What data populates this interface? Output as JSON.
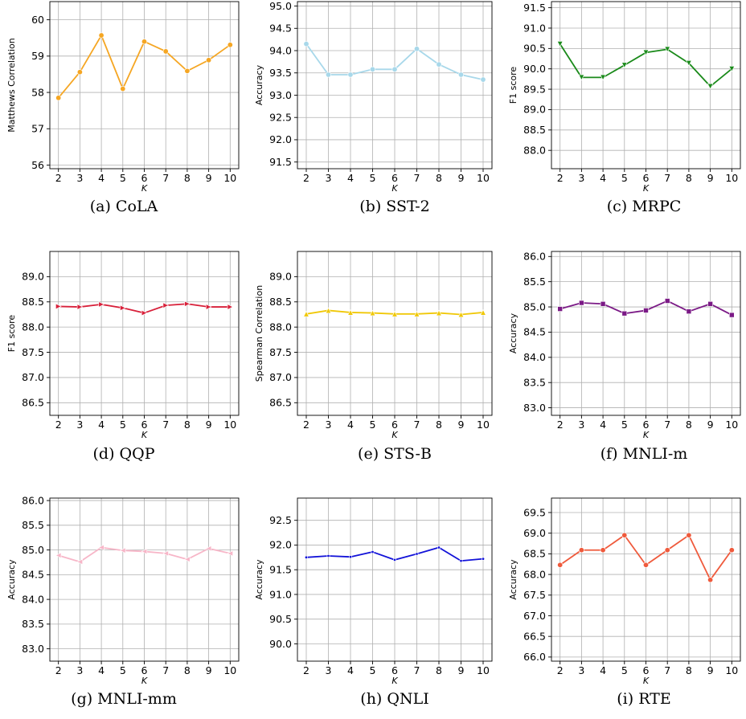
{
  "chart_data": [
    {
      "type": "line",
      "caption": "(a) CoLA",
      "color": "#f5a623",
      "marker": "circle",
      "x": [
        2,
        3,
        4,
        5,
        6,
        7,
        8,
        9,
        10
      ],
      "series": [
        {
          "values": [
            57.85,
            58.56,
            59.57,
            58.1,
            59.4,
            59.13,
            58.59,
            58.89,
            59.31
          ]
        }
      ],
      "xlabel": "K",
      "ylabel": "Matthews Correlation",
      "xlim": [
        1.6,
        10.4
      ],
      "ylim": [
        55.9,
        60.5
      ],
      "yticks": [
        56,
        57,
        58,
        59,
        60
      ],
      "ytick_labels": [
        "56",
        "57",
        "58",
        "59",
        "60"
      ],
      "xticks": [
        2,
        3,
        4,
        5,
        6,
        7,
        8,
        9,
        10
      ],
      "grid": true
    },
    {
      "type": "line",
      "caption": "(b) SST-2",
      "color": "#a8d8ea",
      "marker": "circle",
      "x": [
        2,
        3,
        4,
        5,
        6,
        7,
        8,
        9,
        10
      ],
      "series": [
        {
          "values": [
            94.15,
            93.46,
            93.46,
            93.58,
            93.58,
            94.04,
            93.69,
            93.46,
            93.35
          ]
        }
      ],
      "xlabel": "K",
      "ylabel": "Accuracy",
      "xlim": [
        1.6,
        10.4
      ],
      "ylim": [
        91.35,
        95.1
      ],
      "yticks": [
        91.5,
        92.0,
        92.5,
        93.0,
        93.5,
        94.0,
        94.5,
        95.0
      ],
      "ytick_labels": [
        "91.5",
        "92.0",
        "92.5",
        "93.0",
        "93.5",
        "94.0",
        "94.5",
        "95.0"
      ],
      "xticks": [
        2,
        3,
        4,
        5,
        6,
        7,
        8,
        9,
        10
      ],
      "grid": true
    },
    {
      "type": "line",
      "caption": "(c) MRPC",
      "color": "#1a8a1a",
      "marker": "triangle-down",
      "x": [
        2,
        3,
        4,
        5,
        6,
        7,
        8,
        9,
        10
      ],
      "series": [
        {
          "values": [
            90.61,
            89.79,
            89.79,
            90.09,
            90.4,
            90.48,
            90.14,
            89.57,
            90.0
          ]
        }
      ],
      "xlabel": "K",
      "ylabel": "F1 score",
      "xlim": [
        1.6,
        10.4
      ],
      "ylim": [
        87.55,
        91.65
      ],
      "yticks": [
        88.0,
        88.5,
        89.0,
        89.5,
        90.0,
        90.5,
        91.0,
        91.5
      ],
      "ytick_labels": [
        "88.0",
        "88.5",
        "89.0",
        "89.5",
        "90.0",
        "90.5",
        "91.0",
        "91.5"
      ],
      "xticks": [
        2,
        3,
        4,
        5,
        6,
        7,
        8,
        9,
        10
      ],
      "grid": true
    },
    {
      "type": "line",
      "caption": "(d) QQP",
      "color": "#d8203a",
      "marker": "triangle-right",
      "x": [
        2,
        3,
        4,
        5,
        6,
        7,
        8,
        9,
        10
      ],
      "series": [
        {
          "values": [
            88.41,
            88.4,
            88.45,
            88.38,
            88.28,
            88.43,
            88.46,
            88.4,
            88.4
          ]
        }
      ],
      "xlabel": "K",
      "ylabel": "F1 score",
      "xlim": [
        1.6,
        10.4
      ],
      "ylim": [
        86.25,
        89.5
      ],
      "yticks": [
        86.5,
        87.0,
        87.5,
        88.0,
        88.5,
        89.0
      ],
      "ytick_labels": [
        "86.5",
        "87.0",
        "87.5",
        "88.0",
        "88.5",
        "89.0"
      ],
      "xticks": [
        2,
        3,
        4,
        5,
        6,
        7,
        8,
        9,
        10
      ],
      "grid": true
    },
    {
      "type": "line",
      "caption": "(e) STS-B",
      "color": "#f0c808",
      "marker": "triangle-up",
      "x": [
        2,
        3,
        4,
        5,
        6,
        7,
        8,
        9,
        10
      ],
      "series": [
        {
          "values": [
            88.26,
            88.33,
            88.29,
            88.28,
            88.26,
            88.26,
            88.28,
            88.25,
            88.29
          ]
        }
      ],
      "xlabel": "K",
      "ylabel": "Spearman Correlation",
      "xlim": [
        1.6,
        10.4
      ],
      "ylim": [
        86.25,
        89.5
      ],
      "yticks": [
        86.5,
        87.0,
        87.5,
        88.0,
        88.5,
        89.0
      ],
      "ytick_labels": [
        "86.5",
        "87.0",
        "87.5",
        "88.0",
        "88.5",
        "89.0"
      ],
      "xticks": [
        2,
        3,
        4,
        5,
        6,
        7,
        8,
        9,
        10
      ],
      "grid": true
    },
    {
      "type": "line",
      "caption": "(f) MNLI-m",
      "color": "#7b1a86",
      "marker": "square",
      "x": [
        2,
        3,
        4,
        5,
        6,
        7,
        8,
        9,
        10
      ],
      "series": [
        {
          "values": [
            84.96,
            85.08,
            85.06,
            84.87,
            84.93,
            85.12,
            84.91,
            85.06,
            84.84
          ]
        }
      ],
      "xlabel": "K",
      "ylabel": "Accuracy",
      "xlim": [
        1.6,
        10.4
      ],
      "ylim": [
        82.85,
        86.1
      ],
      "yticks": [
        83.0,
        83.5,
        84.0,
        84.5,
        85.0,
        85.5,
        86.0
      ],
      "ytick_labels": [
        "83.0",
        "83.5",
        "84.0",
        "84.5",
        "85.0",
        "85.5",
        "86.0"
      ],
      "xticks": [
        2,
        3,
        4,
        5,
        6,
        7,
        8,
        9,
        10
      ],
      "grid": true
    },
    {
      "type": "line",
      "caption": "(g) MNLI-mm",
      "color": "#f7b6c8",
      "marker": "triangle-left",
      "x": [
        2,
        3,
        4,
        5,
        6,
        7,
        8,
        9,
        10
      ],
      "series": [
        {
          "values": [
            84.89,
            84.76,
            85.05,
            84.99,
            84.97,
            84.93,
            84.81,
            85.03,
            84.93
          ]
        }
      ],
      "xlabel": "K",
      "ylabel": "Accuracy",
      "xlim": [
        1.6,
        10.4
      ],
      "ylim": [
        82.75,
        86.05
      ],
      "yticks": [
        83.0,
        83.5,
        84.0,
        84.5,
        85.0,
        85.5,
        86.0
      ],
      "ytick_labels": [
        "83.0",
        "83.5",
        "84.0",
        "84.5",
        "85.0",
        "85.5",
        "86.0"
      ],
      "xticks": [
        2,
        3,
        4,
        5,
        6,
        7,
        8,
        9,
        10
      ],
      "grid": true
    },
    {
      "type": "line",
      "caption": "(h) QNLI",
      "color": "#1212d8",
      "marker": "point",
      "x": [
        2,
        3,
        4,
        5,
        6,
        7,
        8,
        9,
        10
      ],
      "series": [
        {
          "values": [
            91.75,
            91.78,
            91.76,
            91.86,
            91.7,
            91.82,
            91.95,
            91.68,
            91.72
          ]
        }
      ],
      "xlabel": "K",
      "ylabel": "Accuracy",
      "xlim": [
        1.6,
        10.4
      ],
      "ylim": [
        89.65,
        92.95
      ],
      "yticks": [
        90.0,
        90.5,
        91.0,
        91.5,
        92.0,
        92.5
      ],
      "ytick_labels": [
        "90.0",
        "90.5",
        "91.0",
        "91.5",
        "92.0",
        "92.5"
      ],
      "xticks": [
        2,
        3,
        4,
        5,
        6,
        7,
        8,
        9,
        10
      ],
      "grid": true
    },
    {
      "type": "line",
      "caption": "(i) RTE",
      "color": "#ef5a3c",
      "marker": "circle",
      "x": [
        2,
        3,
        4,
        5,
        6,
        7,
        8,
        9,
        10
      ],
      "series": [
        {
          "values": [
            68.23,
            68.59,
            68.59,
            68.95,
            68.23,
            68.59,
            68.95,
            67.87,
            68.59
          ]
        }
      ],
      "xlabel": "K",
      "ylabel": "Accuracy",
      "xlim": [
        1.6,
        10.4
      ],
      "ylim": [
        65.9,
        69.85
      ],
      "yticks": [
        66.0,
        66.5,
        67.0,
        67.5,
        68.0,
        68.5,
        69.0,
        69.5
      ],
      "ytick_labels": [
        "66.0",
        "66.5",
        "67.0",
        "67.5",
        "68.0",
        "68.5",
        "69.0",
        "69.5"
      ],
      "xticks": [
        2,
        3,
        4,
        5,
        6,
        7,
        8,
        9,
        10
      ],
      "grid": true
    }
  ]
}
